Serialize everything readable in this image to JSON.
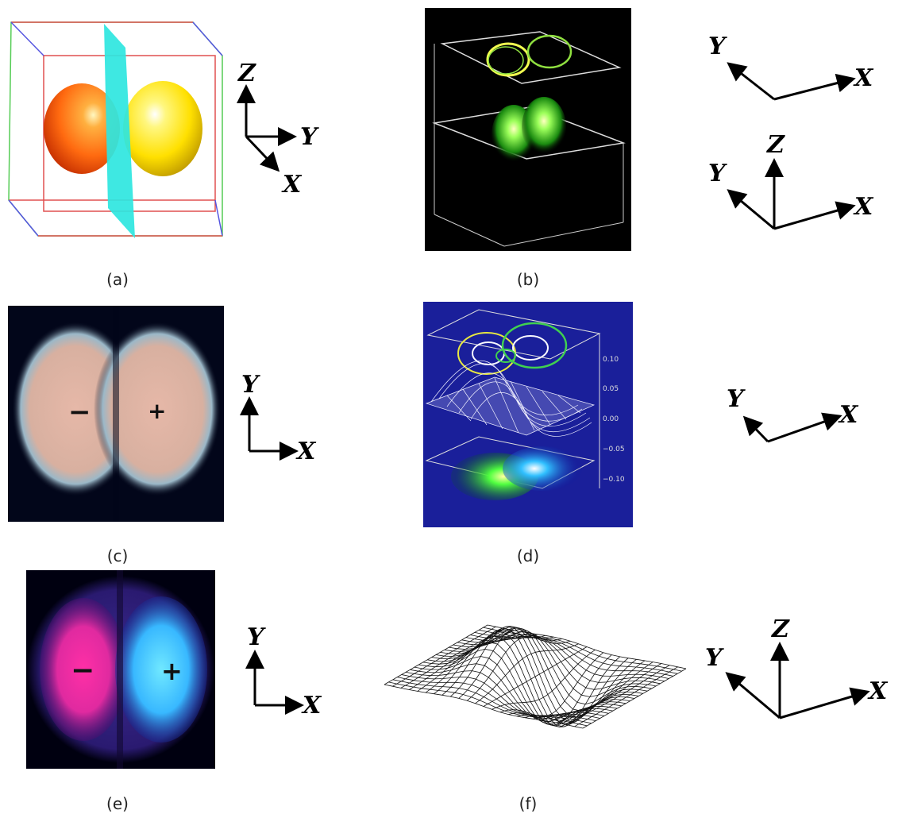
{
  "panels": [
    {
      "id": "a",
      "caption": "(a)"
    },
    {
      "id": "b",
      "caption": "(b)"
    },
    {
      "id": "c",
      "caption": "(c)",
      "signs": [
        "−",
        "+"
      ]
    },
    {
      "id": "d",
      "caption": "(d)"
    },
    {
      "id": "e",
      "caption": "(e)",
      "signs": [
        "−",
        "+"
      ]
    },
    {
      "id": "f",
      "caption": "(f)"
    }
  ],
  "axis_labels": {
    "x": "X",
    "y": "Y",
    "z": "Z"
  },
  "panel_d_ticks": [
    "0.10",
    "0.05",
    "0.00",
    "−0.05",
    "−0.10"
  ],
  "colors": {
    "orange_lobe": "#ff7a1a",
    "yellow_lobe": "#ffe600",
    "cyan_plane": "#2ee6e0",
    "green_glow": "#3cff3c",
    "blue_glow": "#2c8cff",
    "magenta_lobe": "#ff2fa6",
    "cyan_lobe": "#38c8ff",
    "navy_bg": "#1a1f9a"
  }
}
